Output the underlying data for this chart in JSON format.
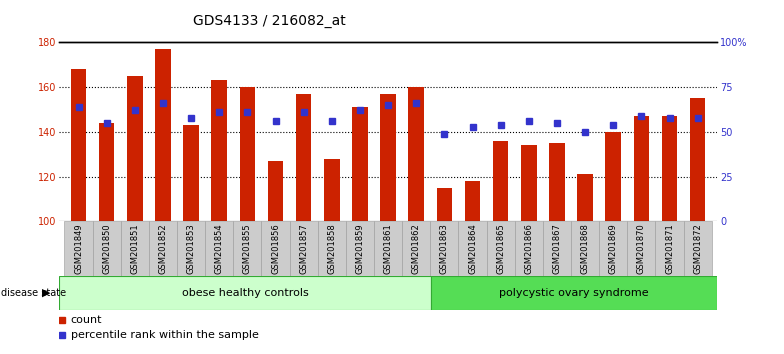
{
  "title": "GDS4133 / 216082_at",
  "samples": [
    "GSM201849",
    "GSM201850",
    "GSM201851",
    "GSM201852",
    "GSM201853",
    "GSM201854",
    "GSM201855",
    "GSM201856",
    "GSM201857",
    "GSM201858",
    "GSM201859",
    "GSM201861",
    "GSM201862",
    "GSM201863",
    "GSM201864",
    "GSM201865",
    "GSM201866",
    "GSM201867",
    "GSM201868",
    "GSM201869",
    "GSM201870",
    "GSM201871",
    "GSM201872"
  ],
  "counts": [
    168,
    144,
    165,
    177,
    143,
    163,
    160,
    127,
    157,
    128,
    151,
    157,
    160,
    115,
    118,
    136,
    134,
    135,
    121,
    140,
    147,
    147,
    155
  ],
  "percentile_ranks": [
    151,
    144,
    150,
    153,
    146,
    149,
    149,
    145,
    149,
    145,
    150,
    152,
    153,
    139,
    142,
    143,
    145,
    144,
    140,
    143,
    147,
    146,
    146
  ],
  "group1_label": "obese healthy controls",
  "group2_label": "polycystic ovary syndrome",
  "group1_count": 13,
  "group2_count": 10,
  "ymin": 100,
  "ymax": 180,
  "yticks": [
    100,
    120,
    140,
    160,
    180
  ],
  "right_yticks_pct": [
    0,
    25,
    50,
    75,
    100
  ],
  "bar_color": "#cc2200",
  "dot_color": "#3333cc",
  "group1_bg": "#ccffcc",
  "group2_bg": "#55dd55",
  "tick_bg": "#cccccc",
  "tick_edge": "#999999",
  "legend_count_color": "#cc2200",
  "legend_pct_color": "#3333cc",
  "title_fontsize": 10,
  "tick_fontsize": 7,
  "label_fontsize": 8,
  "legend_fontsize": 8
}
